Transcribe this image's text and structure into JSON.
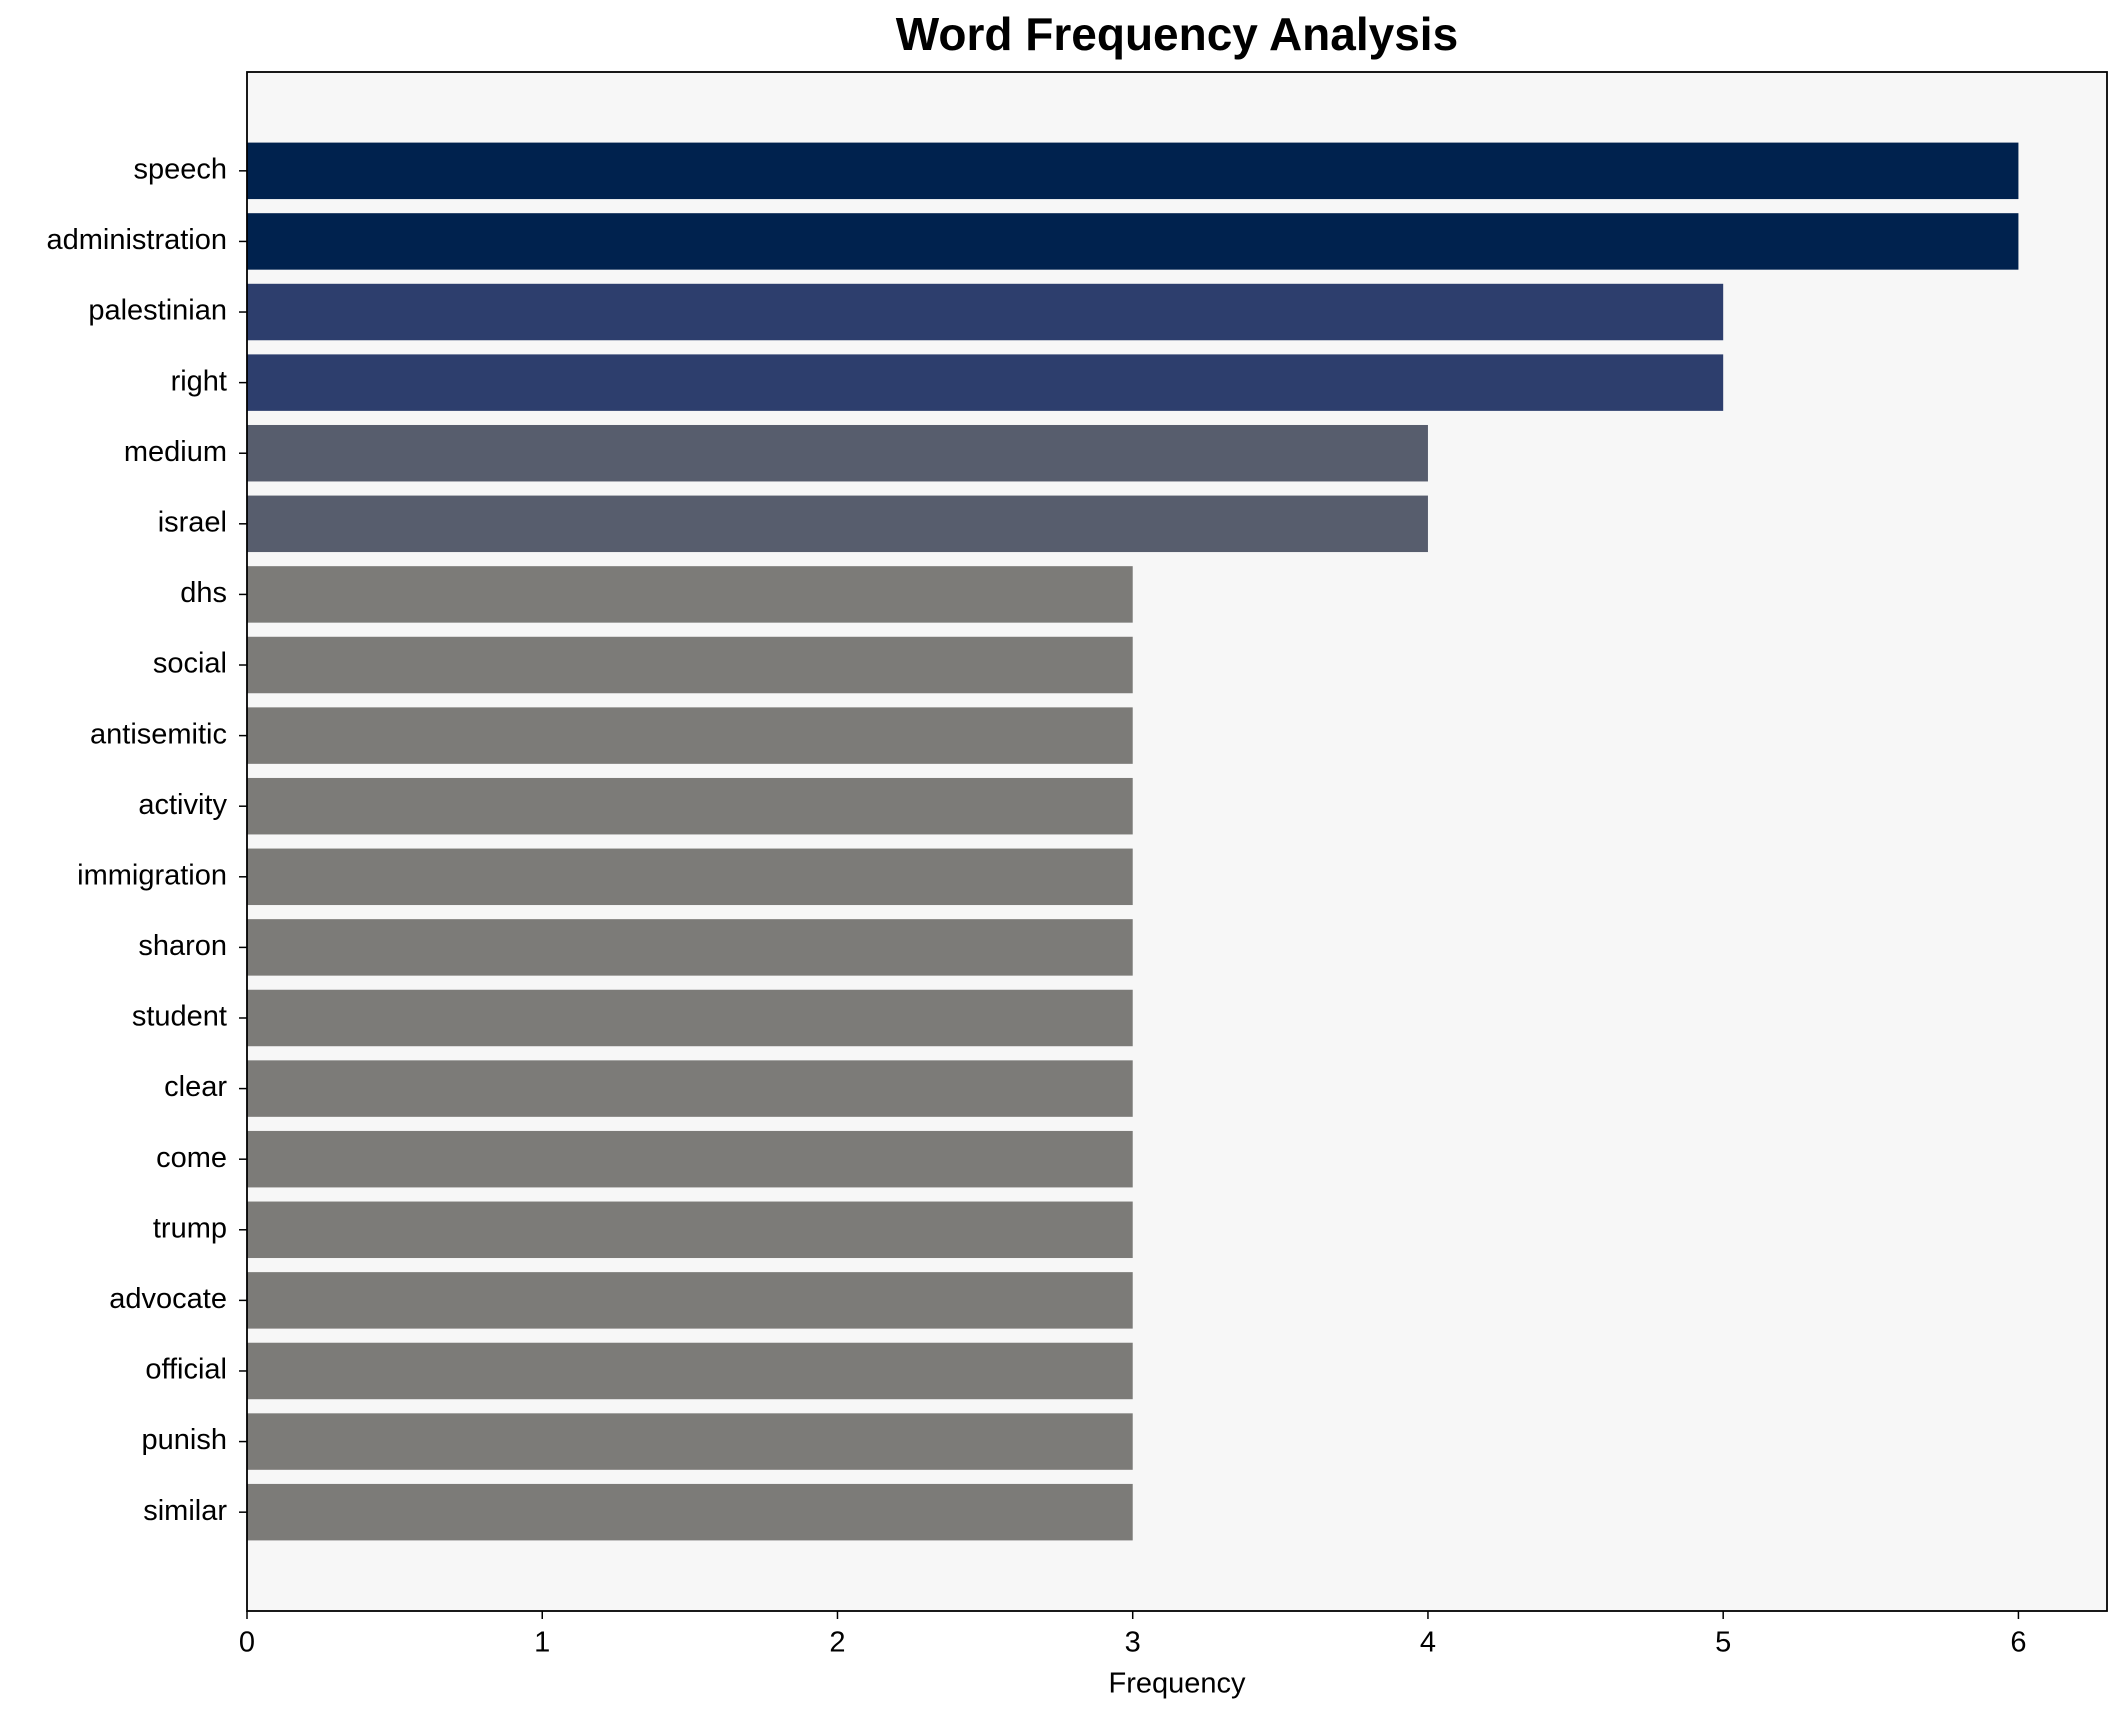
{
  "chart_data": {
    "type": "bar",
    "orientation": "horizontal",
    "title": "Word Frequency Analysis",
    "xlabel": "Frequency",
    "categories": [
      "speech",
      "administration",
      "palestinian",
      "right",
      "medium",
      "israel",
      "dhs",
      "social",
      "antisemitic",
      "activity",
      "immigration",
      "sharon",
      "student",
      "clear",
      "come",
      "trump",
      "advocate",
      "official",
      "punish",
      "similar"
    ],
    "values": [
      6,
      6,
      5,
      5,
      4,
      4,
      3,
      3,
      3,
      3,
      3,
      3,
      3,
      3,
      3,
      3,
      3,
      3,
      3,
      3
    ],
    "colors": [
      "#00224e",
      "#00224e",
      "#2d3e6d",
      "#2d3e6d",
      "#575d6d",
      "#575d6d",
      "#7c7b78",
      "#7c7b78",
      "#7c7b78",
      "#7c7b78",
      "#7c7b78",
      "#7c7b78",
      "#7c7b78",
      "#7c7b78",
      "#7c7b78",
      "#7c7b78",
      "#7c7b78",
      "#7c7b78",
      "#7c7b78",
      "#7c7b78"
    ],
    "xlim": [
      0,
      6.3
    ],
    "xticks": [
      0,
      1,
      2,
      3,
      4,
      5,
      6
    ],
    "grid": false
  }
}
